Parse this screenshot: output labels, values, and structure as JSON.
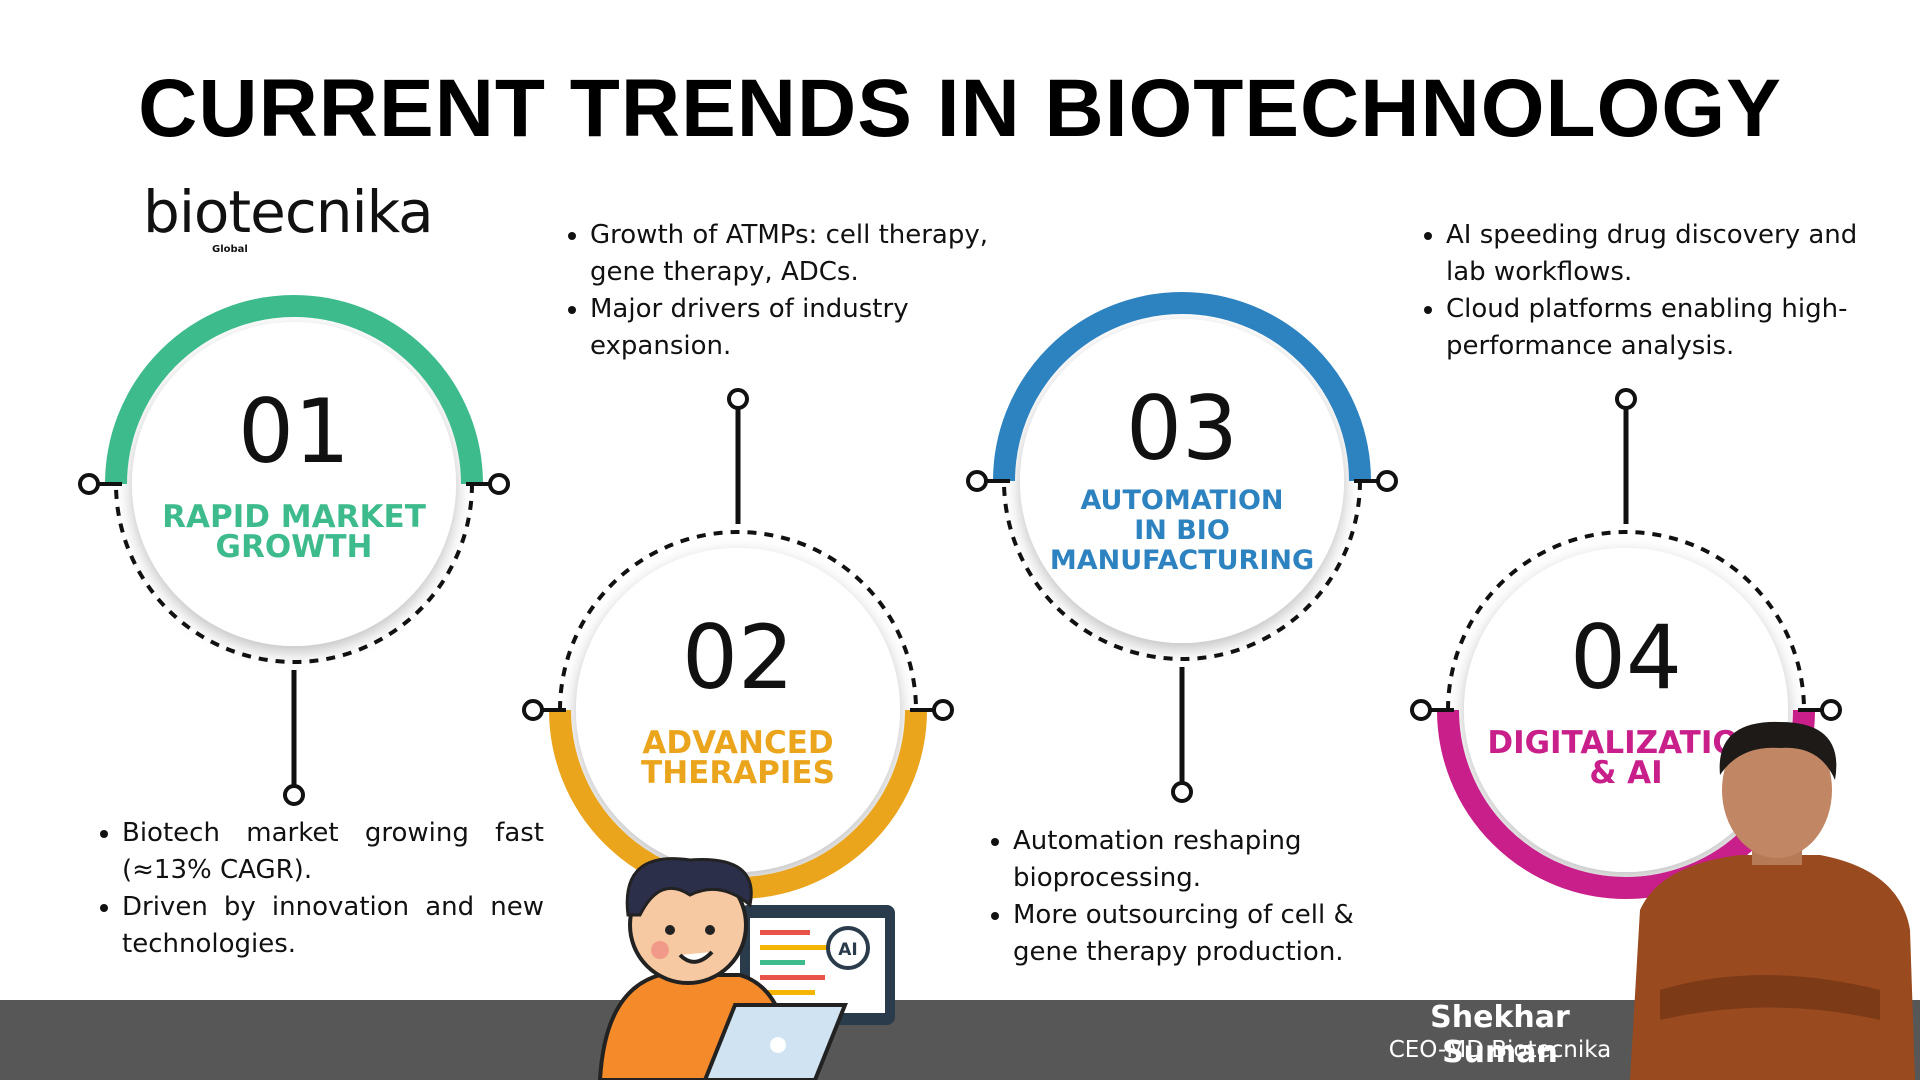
{
  "title": "CURRENT TRENDS IN BIOTECHNOLOGY",
  "logo": {
    "name": "biotecnika",
    "tagline": "Global"
  },
  "items": [
    {
      "number": "01",
      "label_lines": [
        "RAPID MARKET",
        "GROWTH"
      ],
      "color": "#3dbb8c",
      "bullets": [
        "Biotech market growing fast (≈13% CAGR).",
        "Driven by innovation and new technologies."
      ]
    },
    {
      "number": "02",
      "label_lines": [
        "ADVANCED",
        "THERAPIES"
      ],
      "color": "#eba51c",
      "bullets": [
        "Growth of ATMPs: cell therapy, gene therapy, ADCs.",
        "Major drivers of industry expansion."
      ]
    },
    {
      "number": "03",
      "label_lines": [
        "AUTOMATION",
        "IN BIO",
        "MANUFACTURING"
      ],
      "color": "#2d82c0",
      "bullets": [
        "Automation reshaping bioprocessing.",
        "More outsourcing of cell & gene therapy production."
      ]
    },
    {
      "number": "04",
      "label_lines": [
        "DIGITALIZATION",
        "& AI"
      ],
      "color": "#c81f8a",
      "bullets": [
        "AI speeding drug discovery and lab workflows.",
        "Cloud platforms enabling high-performance analysis."
      ]
    }
  ],
  "illustration": {
    "badge": "AI"
  },
  "footer": {
    "name": "Shekhar Suman",
    "role": "CEO-MD Biotecnika"
  }
}
